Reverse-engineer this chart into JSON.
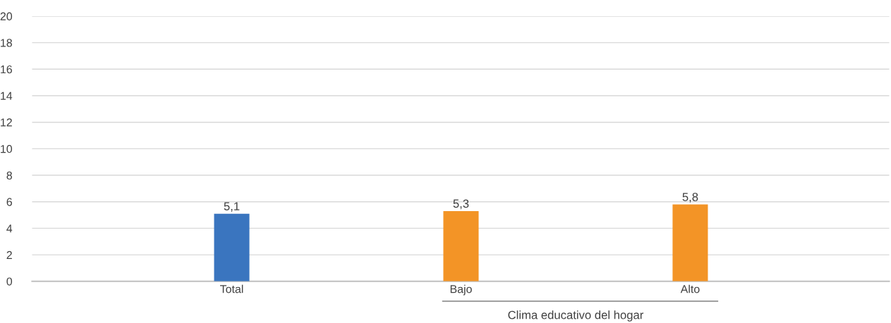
{
  "chart_data": {
    "type": "bar",
    "categories": [
      "Total",
      "Bajo",
      "Alto"
    ],
    "values": [
      5.1,
      5.3,
      5.8
    ],
    "colors": [
      "#3a75bf",
      "#f39426",
      "#f39426"
    ],
    "value_labels": [
      "5,1",
      "5,3",
      "5,8"
    ],
    "ylim": [
      0,
      20
    ],
    "yticks": [
      0,
      2,
      4,
      6,
      8,
      10,
      12,
      14,
      16,
      18,
      20
    ],
    "grid": "y",
    "annotations": [
      "Clima educativo del hogar"
    ]
  }
}
